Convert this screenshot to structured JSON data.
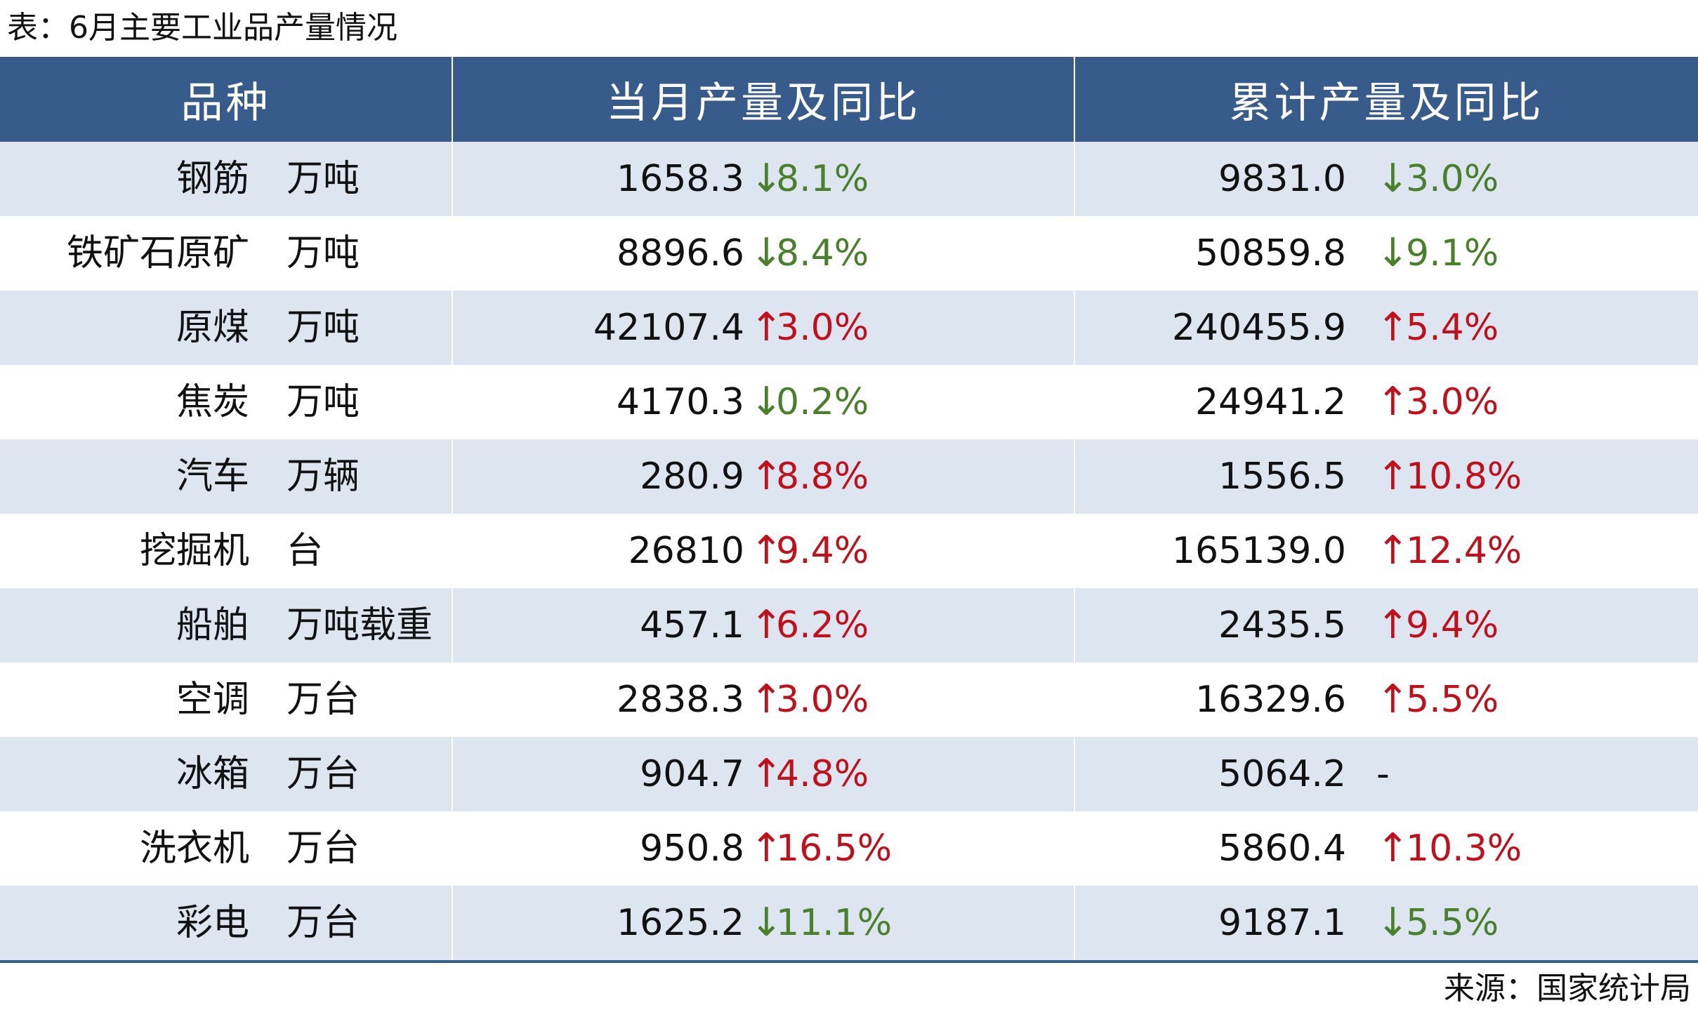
{
  "title": "表：6月主要工业品产量情况",
  "headers": [
    "品种",
    "当月产量及同比",
    "累计产量及同比"
  ],
  "rows": [
    {
      "name": "钢筋",
      "unit": "万吨",
      "month_value": "1658.3",
      "month_dir": "down",
      "month_pct": "8.1%",
      "cum_value": "9831.0",
      "cum_dir": "down",
      "cum_pct": "3.0%"
    },
    {
      "name": "铁矿石原矿",
      "unit": "万吨",
      "month_value": "8896.6",
      "month_dir": "down",
      "month_pct": "8.4%",
      "cum_value": "50859.8",
      "cum_dir": "down",
      "cum_pct": "9.1%"
    },
    {
      "name": "原煤",
      "unit": "万吨",
      "month_value": "42107.4",
      "month_dir": "up",
      "month_pct": "3.0%",
      "cum_value": "240455.9",
      "cum_dir": "up",
      "cum_pct": "5.4%"
    },
    {
      "name": "焦炭",
      "unit": "万吨",
      "month_value": "4170.3",
      "month_dir": "down",
      "month_pct": "0.2%",
      "cum_value": "24941.2",
      "cum_dir": "up",
      "cum_pct": "3.0%"
    },
    {
      "name": "汽车",
      "unit": "万辆",
      "month_value": "280.9",
      "month_dir": "up",
      "month_pct": "8.8%",
      "cum_value": "1556.5",
      "cum_dir": "up",
      "cum_pct": "10.8%"
    },
    {
      "name": "挖掘机",
      "unit": "台",
      "month_value": "26810",
      "month_dir": "up",
      "month_pct": "9.4%",
      "cum_value": "165139.0",
      "cum_dir": "up",
      "cum_pct": "12.4%"
    },
    {
      "name": "船舶",
      "unit": "万吨载重",
      "month_value": "457.1",
      "month_dir": "up",
      "month_pct": "6.2%",
      "cum_value": "2435.5",
      "cum_dir": "up",
      "cum_pct": "9.4%"
    },
    {
      "name": "空调",
      "unit": "万台",
      "month_value": "2838.3",
      "month_dir": "up",
      "month_pct": "3.0%",
      "cum_value": "16329.6",
      "cum_dir": "up",
      "cum_pct": "5.5%"
    },
    {
      "name": "冰箱",
      "unit": "万台",
      "month_value": "904.7",
      "month_dir": "up",
      "month_pct": "4.8%",
      "cum_value": "5064.2",
      "cum_dir": "none",
      "cum_pct": "-"
    },
    {
      "name": "洗衣机",
      "unit": "万台",
      "month_value": "950.8",
      "month_dir": "up",
      "month_pct": "16.5%",
      "cum_value": "5860.4",
      "cum_dir": "up",
      "cum_pct": "10.3%"
    },
    {
      "name": "彩电",
      "unit": "万台",
      "month_value": "1625.2",
      "month_dir": "down",
      "month_pct": "11.1%",
      "cum_value": "9187.1",
      "cum_dir": "down",
      "cum_pct": "5.5%"
    }
  ],
  "source": "来源：国家统计局",
  "colors": {
    "header_bg": "#375c8c",
    "stripe": "#dde5f1",
    "up": "#c0101c",
    "down": "#4a7f2c"
  },
  "icons": {
    "up": "arrow-up-icon",
    "down": "arrow-down-icon"
  }
}
